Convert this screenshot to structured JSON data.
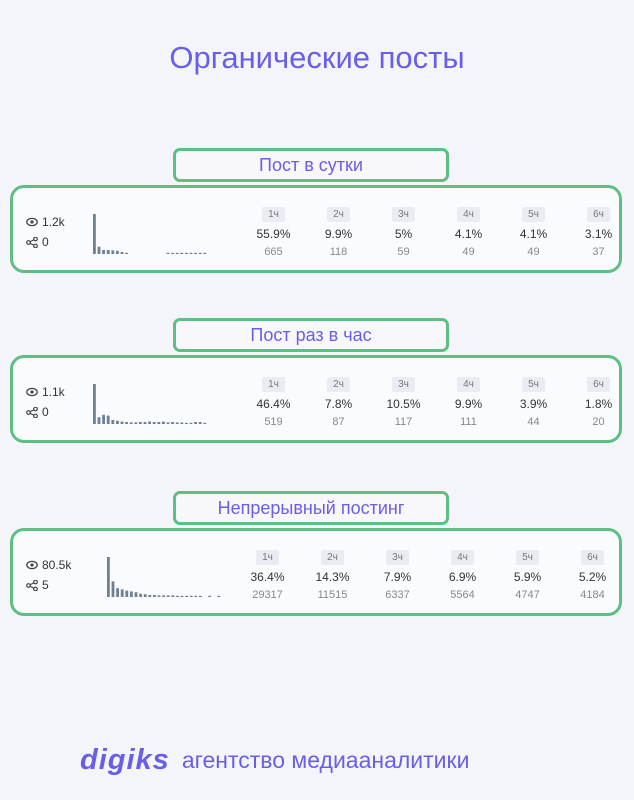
{
  "page_title": "Органические посты",
  "footer": {
    "brand": "digiks",
    "tagline": "агентство медиааналитики"
  },
  "colors": {
    "accent": "#6a5ee8",
    "border": "#5fbf83",
    "bar": "#6f8094"
  },
  "sections": [
    {
      "label": "Пост в сутки",
      "views": "1.2k",
      "shares": "0",
      "spark": [
        1.0,
        0.18,
        0.1,
        0.1,
        0.09,
        0.08,
        0.05,
        0.03,
        0,
        0,
        0,
        0,
        0,
        0,
        0,
        0,
        0.02,
        0.02,
        0.02,
        0.02,
        0.02,
        0.02,
        0.02,
        0.02,
        0.02
      ],
      "metrics": [
        {
          "hour": "1ч",
          "pct": "55.9%",
          "count": "665"
        },
        {
          "hour": "2ч",
          "pct": "9.9%",
          "count": "118"
        },
        {
          "hour": "3ч",
          "pct": "5%",
          "count": "59"
        },
        {
          "hour": "4ч",
          "pct": "4.1%",
          "count": "49"
        },
        {
          "hour": "5ч",
          "pct": "4.1%",
          "count": "49"
        },
        {
          "hour": "6ч",
          "pct": "3.1%",
          "count": "37"
        }
      ]
    },
    {
      "label": "Пост раз в час",
      "views": "1.1k",
      "shares": "0",
      "spark": [
        1.0,
        0.17,
        0.23,
        0.21,
        0.1,
        0.08,
        0.06,
        0.05,
        0.04,
        0.04,
        0.05,
        0.05,
        0.06,
        0.05,
        0.05,
        0.06,
        0.04,
        0.05,
        0.04,
        0.04,
        0.03,
        0.03,
        0.05,
        0.05,
        0.03
      ],
      "metrics": [
        {
          "hour": "1ч",
          "pct": "46.4%",
          "count": "519"
        },
        {
          "hour": "2ч",
          "pct": "7.8%",
          "count": "87"
        },
        {
          "hour": "3ч",
          "pct": "10.5%",
          "count": "117"
        },
        {
          "hour": "4ч",
          "pct": "9.9%",
          "count": "111"
        },
        {
          "hour": "5ч",
          "pct": "3.9%",
          "count": "44"
        },
        {
          "hour": "6ч",
          "pct": "1.8%",
          "count": "20"
        }
      ]
    },
    {
      "label": "Непрерывный постинг",
      "views": "80.5k",
      "shares": "5",
      "spark": [
        1.0,
        0.39,
        0.22,
        0.19,
        0.16,
        0.14,
        0.12,
        0.08,
        0.07,
        0.05,
        0.05,
        0.04,
        0.04,
        0.04,
        0.04,
        0.03,
        0.03,
        0.03,
        0.02,
        0.02,
        0.02,
        0,
        0.02,
        0,
        0.02
      ],
      "metrics": [
        {
          "hour": "1ч",
          "pct": "36.4%",
          "count": "29317"
        },
        {
          "hour": "2ч",
          "pct": "14.3%",
          "count": "11515"
        },
        {
          "hour": "3ч",
          "pct": "7.9%",
          "count": "6337"
        },
        {
          "hour": "4ч",
          "pct": "6.9%",
          "count": "5564"
        },
        {
          "hour": "5ч",
          "pct": "5.9%",
          "count": "4747"
        },
        {
          "hour": "6ч",
          "pct": "5.2%",
          "count": "4184"
        }
      ]
    }
  ]
}
